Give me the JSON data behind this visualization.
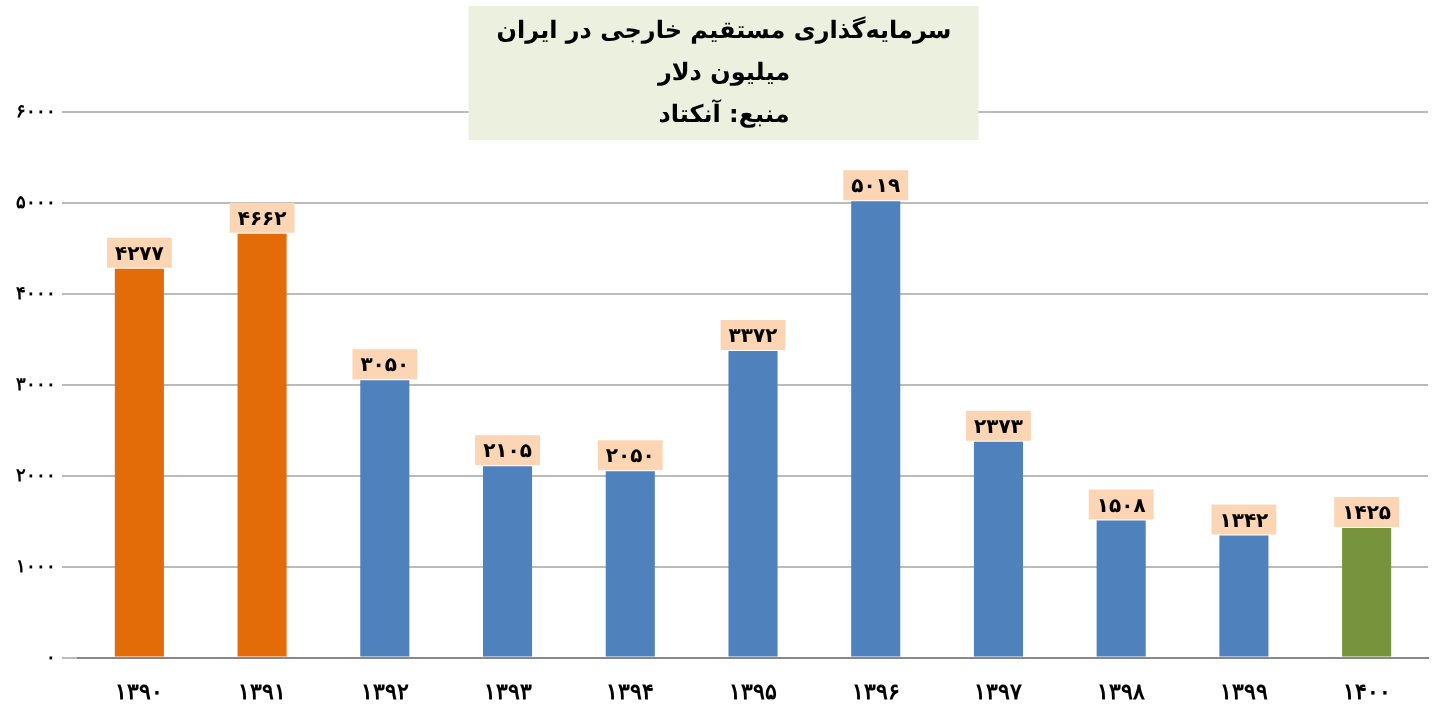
{
  "chart_data": {
    "type": "bar",
    "title": "سرمایه‌گذاری مستقیم خارجی در ایران",
    "subtitle": "میلیون دلار",
    "annotations": [
      "منبع: آنکتاد"
    ],
    "categories": [
      "۱۳۹۰",
      "۱۳۹۱",
      "۱۳۹۲",
      "۱۳۹۳",
      "۱۳۹۴",
      "۱۳۹۵",
      "۱۳۹۶",
      "۱۳۹۷",
      "۱۳۹۸",
      "۱۳۹۹",
      "۱۴۰۰"
    ],
    "values": [
      4277,
      4662,
      3050,
      2105,
      2050,
      3372,
      5019,
      2373,
      1508,
      1342,
      1425
    ],
    "colors": [
      "#e36c09",
      "#e36c09",
      "#4f81bd",
      "#4f81bd",
      "#4f81bd",
      "#4f81bd",
      "#4f81bd",
      "#4f81bd",
      "#4f81bd",
      "#4f81bd",
      "#77933c"
    ],
    "value_labels": [
      "۴۲۷۷",
      "۴۶۶۲",
      "۳۰۵۰",
      "۲۱۰۵",
      "۲۰۵۰",
      "۳۳۷۲",
      "۵۰۱۹",
      "۲۳۷۳",
      "۱۵۰۸",
      "۱۳۴۲",
      "۱۴۲۵"
    ],
    "ylim": [
      0,
      6000
    ],
    "yticks": [
      {
        "value": 0,
        "label": "۰"
      },
      {
        "value": 1000,
        "label": "۱۰۰۰"
      },
      {
        "value": 2000,
        "label": "۲۰۰۰"
      },
      {
        "value": 3000,
        "label": "۳۰۰۰"
      },
      {
        "value": 4000,
        "label": "۴۰۰۰"
      },
      {
        "value": 5000,
        "label": "۵۰۰۰"
      },
      {
        "value": 6000,
        "label": "۶۰۰۰"
      }
    ],
    "grid": "y",
    "legend": false
  }
}
